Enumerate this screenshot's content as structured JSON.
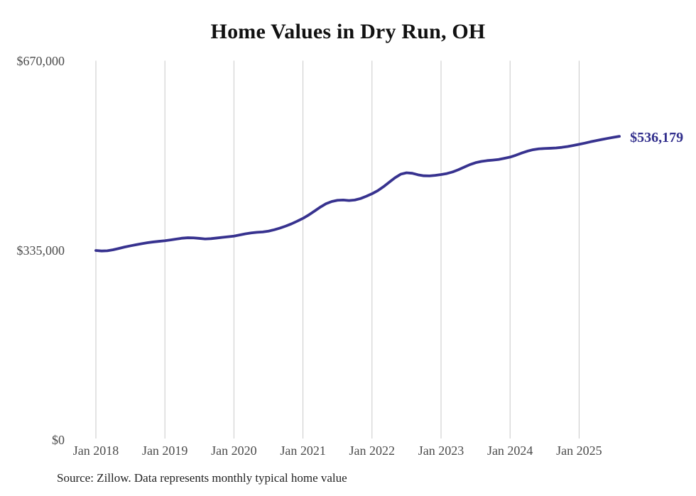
{
  "title": "Home Values in Dry Run, OH",
  "source_note": "Source: Zillow. Data represents monthly typical home value",
  "end_label": "$536,179",
  "colors": {
    "line": "#37328f",
    "end_label": "#312e8c",
    "grid": "#c9c9c9",
    "tick_text": "#4b4b4b",
    "title_text": "#111111",
    "source_text": "#222222",
    "background": "#ffffff"
  },
  "chart_data": {
    "type": "line",
    "title": "Home Values in Dry Run, OH",
    "xlabel": "",
    "ylabel": "",
    "x_interval": "month",
    "x_start": "Jan 2018",
    "x_end": "Aug 2025",
    "x_tick_labels": [
      "Jan 2018",
      "Jan 2019",
      "Jan 2020",
      "Jan 2021",
      "Jan 2022",
      "Jan 2023",
      "Jan 2024",
      "Jan 2025"
    ],
    "y_ticks": [
      0,
      335000,
      670000
    ],
    "y_tick_labels": [
      "$0",
      "$335,000",
      "$670,000"
    ],
    "ylim": [
      0,
      670000
    ],
    "grid": "vertical-only",
    "legend": "none",
    "end_value": 536179,
    "values": [
      334400,
      333500,
      333900,
      335600,
      338000,
      340500,
      342600,
      344600,
      346500,
      348100,
      349500,
      350600,
      351600,
      353100,
      354600,
      356100,
      356900,
      356600,
      355800,
      354800,
      355300,
      356400,
      357600,
      358700,
      359800,
      361800,
      363800,
      365400,
      366500,
      367200,
      368600,
      371000,
      374000,
      377500,
      381500,
      386200,
      391200,
      397200,
      404000,
      411000,
      417000,
      421000,
      423100,
      423600,
      422700,
      423600,
      426200,
      430200,
      434700,
      440200,
      447200,
      455200,
      463000,
      469300,
      471800,
      470900,
      468200,
      466500,
      466300,
      467200,
      468600,
      470400,
      473200,
      477100,
      481600,
      486100,
      489600,
      491800,
      493300,
      494200,
      495300,
      497300,
      499500,
      502800,
      506600,
      510000,
      512600,
      514100,
      514700,
      515100,
      515700,
      516700,
      518200,
      520100,
      522100,
      524200,
      526600,
      528700,
      530700,
      532700,
      534500,
      536179
    ]
  }
}
